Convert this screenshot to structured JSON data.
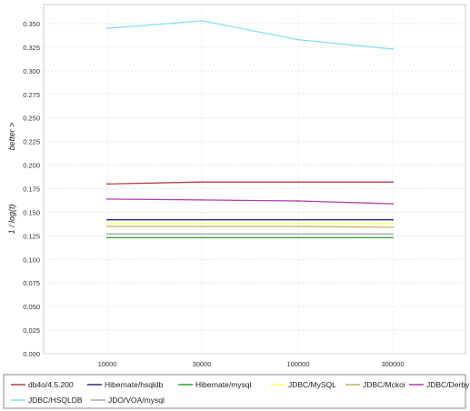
{
  "chart_data": {
    "type": "line",
    "title": "",
    "xlabel": "",
    "ylabel": "1 / log(t)   better >",
    "ylabel_parts": [
      "1 / log(t)",
      "better >"
    ],
    "categories": [
      "10000",
      "30000",
      "100000",
      "300000"
    ],
    "ylim": [
      0,
      0.35
    ],
    "yticks": [
      "0.000",
      "0.025",
      "0.050",
      "0.075",
      "0.100",
      "0.125",
      "0.150",
      "0.175",
      "0.200",
      "0.225",
      "0.250",
      "0.275",
      "0.300",
      "0.325",
      "0.350"
    ],
    "grid": true,
    "legend_position": "bottom",
    "series": [
      {
        "name": "db4o/4.5.200",
        "color": "#b04040",
        "values": [
          0.18,
          0.182,
          0.182,
          0.182
        ]
      },
      {
        "name": "Hibernate/hsqldb",
        "color": "#2a2a80",
        "values": [
          0.142,
          0.142,
          0.142,
          0.142
        ]
      },
      {
        "name": "Hibernate/mysql",
        "color": "#2e9e2e",
        "values": [
          0.123,
          0.123,
          0.123,
          0.123
        ]
      },
      {
        "name": "JDBC/MySQL",
        "color": "#ffff66",
        "values": [
          0.138,
          0.138,
          0.138,
          0.138
        ]
      },
      {
        "name": "JDBC/Mckoi",
        "color": "#c8b060",
        "values": [
          0.135,
          0.135,
          0.135,
          0.134
        ]
      },
      {
        "name": "JDBC/Derby",
        "color": "#b03cb0",
        "values": [
          0.164,
          0.163,
          0.162,
          0.159
        ]
      },
      {
        "name": "JDBC/HSQLDB",
        "color": "#80e0f0",
        "values": [
          0.345,
          0.353,
          0.333,
          0.323
        ]
      },
      {
        "name": "JDO/VOA/mysql",
        "color": "#a8a8a8",
        "values": [
          0.127,
          0.127,
          0.127,
          0.127
        ]
      }
    ]
  }
}
